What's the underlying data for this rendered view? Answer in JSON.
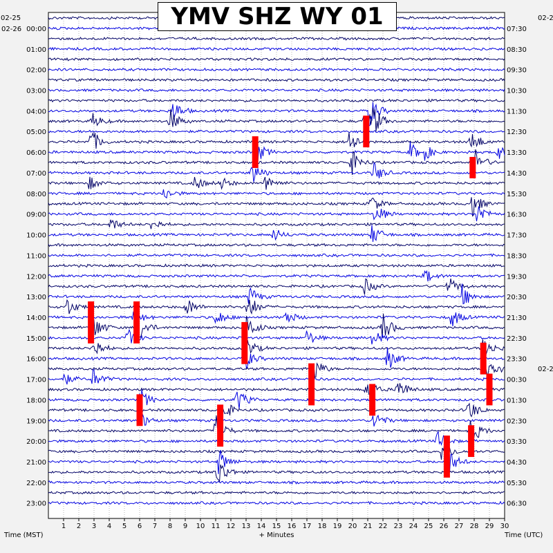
{
  "title": "YMV SHZ WY 01",
  "corner_labels": {
    "top_left_date": "02-25",
    "start_date_left": "02-26",
    "right_date_top": "02-2",
    "right_date_mid": "02-2"
  },
  "footer": {
    "left_label": "Time (MST)",
    "center_label": "+ Minutes",
    "right_label": "Time (UTC)"
  },
  "chart_data": {
    "type": "line",
    "title": "YMV SHZ WY 01",
    "xlabel": "+ Minutes",
    "ylabel_left": "Time (MST)",
    "ylabel_right": "Time (UTC)",
    "xlim": [
      0,
      30
    ],
    "x_ticks": [
      "1",
      "2",
      "3",
      "4",
      "5",
      "6",
      "7",
      "8",
      "9",
      "10",
      "11",
      "12",
      "13",
      "14",
      "15",
      "16",
      "17",
      "18",
      "19",
      "20",
      "21",
      "22",
      "23",
      "24",
      "25",
      "26",
      "27",
      "28",
      "29",
      "30"
    ],
    "left_time_labels": [
      "00:00",
      "01:00",
      "02:00",
      "03:00",
      "04:00",
      "05:00",
      "06:00",
      "07:00",
      "08:00",
      "09:00",
      "10:00",
      "11:00",
      "12:00",
      "13:00",
      "14:00",
      "15:00",
      "16:00",
      "17:00",
      "18:00",
      "19:00",
      "20:00",
      "21:00",
      "22:00",
      "23:00"
    ],
    "right_time_labels": [
      "07:30",
      "08:30",
      "09:30",
      "10:30",
      "11:30",
      "12:30",
      "13:30",
      "14:30",
      "15:30",
      "16:30",
      "17:30",
      "18:30",
      "19:30",
      "20:30",
      "21:30",
      "22:30",
      "23:30",
      "00:30",
      "01:30",
      "02:30",
      "03:30",
      "04:30",
      "05:30",
      "06:30"
    ],
    "trace_count": 48,
    "minutes_per_trace": 30,
    "series_colors": [
      "#000066",
      "#0000e0"
    ],
    "clip_color": "#ff0000",
    "grid": "vertical dotted at each minute",
    "events": [
      {
        "row": 9,
        "minute": 8.2,
        "amp": 16
      },
      {
        "row": 9,
        "minute": 21.1,
        "amp": 26
      },
      {
        "row": 10,
        "minute": 2.9,
        "amp": 12
      },
      {
        "row": 10,
        "minute": 8.0,
        "amp": 18
      },
      {
        "row": 10,
        "minute": 20.8,
        "amp": 18
      },
      {
        "row": 10,
        "minute": 21.3,
        "amp": 22
      },
      {
        "row": 12,
        "minute": 2.8,
        "amp": 20
      },
      {
        "row": 12,
        "minute": 19.8,
        "amp": 20
      },
      {
        "row": 12,
        "minute": 27.8,
        "amp": 18
      },
      {
        "row": 13,
        "minute": 13.6,
        "amp": 20
      },
      {
        "row": 13,
        "minute": 23.8,
        "amp": 14
      },
      {
        "row": 13,
        "minute": 24.6,
        "amp": 14
      },
      {
        "row": 13,
        "minute": 29.5,
        "amp": 12
      },
      {
        "row": 14,
        "minute": 19.9,
        "amp": 20
      },
      {
        "row": 14,
        "minute": 28.0,
        "amp": 22
      },
      {
        "row": 15,
        "minute": 13.4,
        "amp": 18
      },
      {
        "row": 15,
        "minute": 21.4,
        "amp": 16
      },
      {
        "row": 16,
        "minute": 2.7,
        "amp": 10
      },
      {
        "row": 16,
        "minute": 9.6,
        "amp": 12
      },
      {
        "row": 16,
        "minute": 11.3,
        "amp": 10
      },
      {
        "row": 16,
        "minute": 14.3,
        "amp": 14
      },
      {
        "row": 17,
        "minute": 7.6,
        "amp": 10
      },
      {
        "row": 18,
        "minute": 27.8,
        "amp": 22
      },
      {
        "row": 18,
        "minute": 21.2,
        "amp": 14
      },
      {
        "row": 19,
        "minute": 21.5,
        "amp": 16
      },
      {
        "row": 19,
        "minute": 28.2,
        "amp": 18
      },
      {
        "row": 20,
        "minute": 4.1,
        "amp": 10
      },
      {
        "row": 20,
        "minute": 6.8,
        "amp": 10
      },
      {
        "row": 21,
        "minute": 14.8,
        "amp": 10
      },
      {
        "row": 21,
        "minute": 21.3,
        "amp": 16
      },
      {
        "row": 25,
        "minute": 24.7,
        "amp": 12
      },
      {
        "row": 26,
        "minute": 20.8,
        "amp": 12
      },
      {
        "row": 26,
        "minute": 26.3,
        "amp": 14
      },
      {
        "row": 27,
        "minute": 13.2,
        "amp": 16
      },
      {
        "row": 27,
        "minute": 27.2,
        "amp": 18
      },
      {
        "row": 28,
        "minute": 1.2,
        "amp": 14
      },
      {
        "row": 28,
        "minute": 9.1,
        "amp": 14
      },
      {
        "row": 28,
        "minute": 13.1,
        "amp": 22
      },
      {
        "row": 29,
        "minute": 5.6,
        "amp": 14
      },
      {
        "row": 29,
        "minute": 11.0,
        "amp": 14
      },
      {
        "row": 29,
        "minute": 15.6,
        "amp": 12
      },
      {
        "row": 29,
        "minute": 26.5,
        "amp": 16
      },
      {
        "row": 30,
        "minute": 2.9,
        "amp": 24
      },
      {
        "row": 30,
        "minute": 5.9,
        "amp": 22
      },
      {
        "row": 30,
        "minute": 13.0,
        "amp": 24
      },
      {
        "row": 30,
        "minute": 22.0,
        "amp": 22
      },
      {
        "row": 31,
        "minute": 5.2,
        "amp": 14
      },
      {
        "row": 31,
        "minute": 17.0,
        "amp": 12
      },
      {
        "row": 31,
        "minute": 21.3,
        "amp": 14
      },
      {
        "row": 32,
        "minute": 2.9,
        "amp": 20
      },
      {
        "row": 32,
        "minute": 13.0,
        "amp": 18
      },
      {
        "row": 32,
        "minute": 28.6,
        "amp": 18
      },
      {
        "row": 33,
        "minute": 12.9,
        "amp": 18
      },
      {
        "row": 33,
        "minute": 22.3,
        "amp": 18
      },
      {
        "row": 34,
        "minute": 17.3,
        "amp": 26
      },
      {
        "row": 34,
        "minute": 28.9,
        "amp": 24
      },
      {
        "row": 35,
        "minute": 1.0,
        "amp": 10
      },
      {
        "row": 35,
        "minute": 2.9,
        "amp": 16
      },
      {
        "row": 36,
        "minute": 20.9,
        "amp": 16
      },
      {
        "row": 36,
        "minute": 22.9,
        "amp": 20
      },
      {
        "row": 37,
        "minute": 6.0,
        "amp": 18
      },
      {
        "row": 37,
        "minute": 12.4,
        "amp": 18
      },
      {
        "row": 38,
        "minute": 11.4,
        "amp": 20
      },
      {
        "row": 38,
        "minute": 27.6,
        "amp": 18
      },
      {
        "row": 39,
        "minute": 6.0,
        "amp": 14
      },
      {
        "row": 39,
        "minute": 21.4,
        "amp": 16
      },
      {
        "row": 40,
        "minute": 11.0,
        "amp": 24
      },
      {
        "row": 40,
        "minute": 27.8,
        "amp": 22
      },
      {
        "row": 41,
        "minute": 25.6,
        "amp": 16
      },
      {
        "row": 42,
        "minute": 25.9,
        "amp": 24
      },
      {
        "row": 43,
        "minute": 11.2,
        "amp": 20
      },
      {
        "row": 43,
        "minute": 26.3,
        "amp": 20
      },
      {
        "row": 44,
        "minute": 11.1,
        "amp": 26
      }
    ],
    "clips": [
      {
        "row": 10,
        "minute": 20.9,
        "span_rows": 3
      },
      {
        "row": 12,
        "minute": 13.6,
        "span_rows": 3
      },
      {
        "row": 14,
        "minute": 27.9,
        "span_rows": 2
      },
      {
        "row": 28,
        "minute": 2.8,
        "span_rows": 4
      },
      {
        "row": 28,
        "minute": 5.8,
        "span_rows": 4
      },
      {
        "row": 30,
        "minute": 12.9,
        "span_rows": 4
      },
      {
        "row": 34,
        "minute": 17.3,
        "span_rows": 4
      },
      {
        "row": 32,
        "minute": 28.6,
        "span_rows": 3
      },
      {
        "row": 35,
        "minute": 29.0,
        "span_rows": 3
      },
      {
        "row": 37,
        "minute": 6.0,
        "span_rows": 3
      },
      {
        "row": 36,
        "minute": 21.3,
        "span_rows": 3
      },
      {
        "row": 38,
        "minute": 11.3,
        "span_rows": 4
      },
      {
        "row": 41,
        "minute": 26.2,
        "span_rows": 4
      },
      {
        "row": 40,
        "minute": 27.8,
        "span_rows": 3
      }
    ]
  }
}
